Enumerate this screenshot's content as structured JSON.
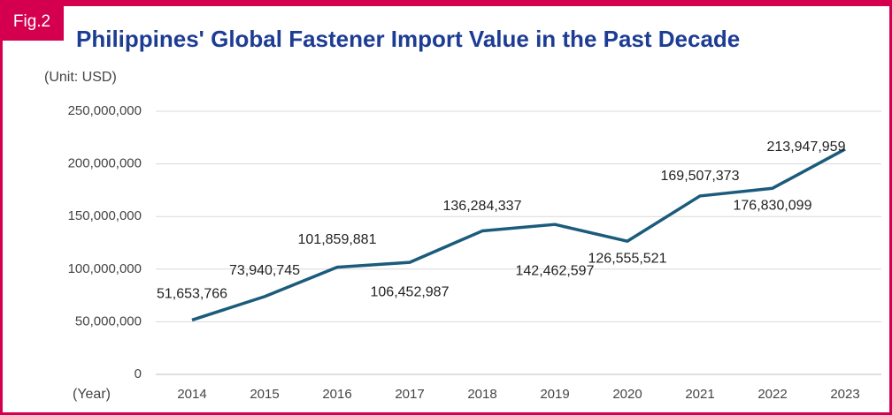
{
  "chart_data": {
    "type": "line",
    "figure_label": "Fig.2",
    "title": "Philippines' Global Fastener Import Value in the Past Decade",
    "y_axis_label": "(Unit: USD)",
    "x_axis_label": "(Year)",
    "categories": [
      "2014",
      "2015",
      "2016",
      "2017",
      "2018",
      "2019",
      "2020",
      "2021",
      "2022",
      "2023"
    ],
    "values": [
      51653766,
      73940745,
      101859881,
      106452987,
      136284337,
      142462597,
      126555521,
      169507373,
      176830099,
      213947959
    ],
    "value_labels": [
      "51,653,766",
      "73,940,745",
      "101,859,881",
      "106,452,987",
      "136,284,337",
      "142,462,597",
      "126,555,521",
      "169,507,373",
      "176,830,099",
      "213,947,959"
    ],
    "color": "#1b5b7c",
    "ylim": [
      0,
      250000000
    ],
    "yticks": [
      0,
      {
        "value": 50000000,
        "label": "50,000,000"
      },
      {
        "value": 100000000,
        "label": "100,000,000"
      },
      {
        "value": 150000000,
        "label": "150,000,000"
      },
      {
        "value": 200000000,
        "label": "200,000,000"
      },
      {
        "value": 250000000,
        "label": "250,000,000"
      }
    ],
    "grid": true
  }
}
